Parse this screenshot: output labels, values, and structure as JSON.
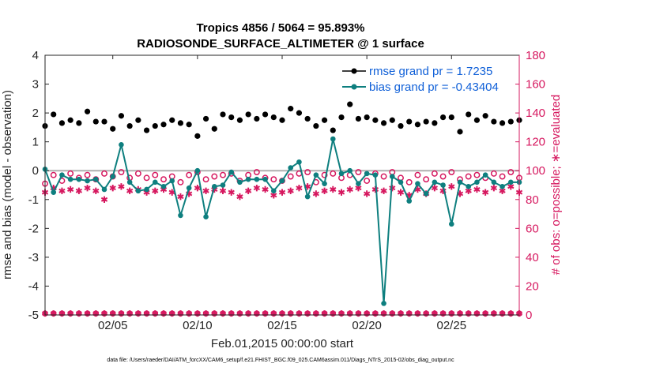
{
  "chart_data": {
    "type": "line",
    "title_line1": "Tropics 4856 / 5064 = 95.893%",
    "title_line2": "RADIOSONDE_SURFACE_ALTIMETER @ 1 surface",
    "xlabel": "Feb.01,2015 00:00:00 start",
    "ylabel_left": "rmse and bias (model - observation)",
    "ylabel_right": "# of obs: o=possible; ∗=evaluated",
    "footnote": "data file: /Users/raeder/DAI/ATM_forcXX/CAM6_setup/f.e21.FHIST_BGC.f09_025.CAM6assim.011/Diags_NTrS_2015-02/obs_diag_output.nc",
    "xlim": [
      1,
      29
    ],
    "ylim_left": [
      -5,
      4
    ],
    "ylim_right": [
      0,
      180
    ],
    "x_ticks": [
      {
        "x": 5,
        "label": "02/05"
      },
      {
        "x": 10,
        "label": "02/10"
      },
      {
        "x": 15,
        "label": "02/15"
      },
      {
        "x": 20,
        "label": "02/20"
      },
      {
        "x": 25,
        "label": "02/25"
      }
    ],
    "y_ticks_left": [
      {
        "v": 4,
        "label": "4"
      },
      {
        "v": 3,
        "label": "3"
      },
      {
        "v": 2,
        "label": "2"
      },
      {
        "v": 1,
        "label": "1"
      },
      {
        "v": 0,
        "label": "0"
      },
      {
        "v": -1,
        "label": "-1"
      },
      {
        "v": -2,
        "label": "-2"
      },
      {
        "v": -3,
        "label": "-3"
      },
      {
        "v": -4,
        "label": "-4"
      },
      {
        "v": -5,
        "label": "-5"
      }
    ],
    "y_ticks_right": [
      {
        "v": 0,
        "label": "0"
      },
      {
        "v": 20,
        "label": "20"
      },
      {
        "v": 40,
        "label": "40"
      },
      {
        "v": 60,
        "label": "60"
      },
      {
        "v": 80,
        "label": "80"
      },
      {
        "v": 100,
        "label": "100"
      },
      {
        "v": 120,
        "label": "120"
      },
      {
        "v": 140,
        "label": "140"
      },
      {
        "v": 160,
        "label": "160"
      },
      {
        "v": 180,
        "label": "180"
      }
    ],
    "legend": [
      {
        "name": "rmse grand pr = 1.7235",
        "color": "#000000"
      },
      {
        "name": "bias grand pr = -0.43404",
        "color": "#0072bd"
      }
    ],
    "colors": {
      "rmse": "#000000",
      "bias": "#0e7f7f",
      "obs": "#d6185f",
      "zero_line": "#b0b0b0",
      "right_axis": "#d6185f"
    },
    "x": [
      1.0,
      1.5,
      2.0,
      2.5,
      3.0,
      3.5,
      4.0,
      4.5,
      5.0,
      5.5,
      6.0,
      6.5,
      7.0,
      7.5,
      8.0,
      8.5,
      9.0,
      9.5,
      10.0,
      10.5,
      11.0,
      11.5,
      12.0,
      12.5,
      13.0,
      13.5,
      14.0,
      14.5,
      15.0,
      15.5,
      16.0,
      16.5,
      17.0,
      17.5,
      18.0,
      18.5,
      19.0,
      19.5,
      20.0,
      20.5,
      21.0,
      21.5,
      22.0,
      22.5,
      23.0,
      23.5,
      24.0,
      24.5,
      25.0,
      25.5,
      26.0,
      26.5,
      27.0,
      27.5,
      28.0,
      28.5,
      29.0
    ],
    "series": [
      {
        "name": "rmse",
        "values": [
          1.55,
          1.95,
          1.65,
          1.75,
          1.65,
          2.05,
          1.7,
          1.7,
          1.45,
          1.9,
          1.55,
          1.75,
          1.4,
          1.55,
          1.6,
          1.75,
          1.65,
          1.6,
          1.2,
          1.8,
          1.45,
          1.95,
          1.85,
          1.75,
          1.95,
          1.8,
          1.95,
          1.85,
          1.75,
          2.15,
          2.0,
          1.8,
          1.55,
          1.75,
          1.4,
          1.85,
          2.3,
          1.8,
          1.85,
          1.75,
          1.65,
          1.75,
          1.55,
          1.7,
          1.6,
          1.7,
          1.65,
          1.85,
          1.85,
          1.35,
          1.95,
          1.75,
          1.9,
          1.7,
          1.65,
          1.7,
          1.75
        ]
      },
      {
        "name": "bias",
        "values": [
          0.05,
          -0.75,
          -0.15,
          -0.3,
          -0.3,
          -0.35,
          -0.3,
          -0.65,
          -0.2,
          0.9,
          -0.4,
          -0.7,
          -0.65,
          -0.4,
          -0.55,
          -0.35,
          -1.55,
          -0.6,
          0.0,
          -1.6,
          -0.55,
          -0.5,
          -0.05,
          -0.4,
          -0.3,
          -0.3,
          -0.3,
          -0.7,
          -0.35,
          0.1,
          0.3,
          -0.9,
          -0.15,
          -0.45,
          1.1,
          -0.1,
          0.0,
          -0.45,
          -0.1,
          -0.15,
          -4.6,
          -0.2,
          -0.4,
          -1.05,
          -0.45,
          -0.8,
          -0.4,
          -0.5,
          -1.85,
          -0.4,
          -0.55,
          -0.4,
          -0.15,
          -0.4,
          -0.55,
          -0.4,
          -0.4
        ]
      },
      {
        "name": "obs_possible",
        "values": [
          91,
          97,
          93,
          98,
          95,
          97,
          94,
          98,
          96,
          99,
          95,
          98,
          95,
          97,
          94,
          96,
          92,
          97,
          99,
          94,
          96,
          97,
          98,
          93,
          97,
          99,
          95,
          94,
          93,
          96,
          98,
          99,
          92,
          97,
          98,
          95,
          97,
          99,
          93,
          98,
          96,
          99,
          95,
          92,
          97,
          94,
          98,
          96,
          99,
          94,
          96,
          97,
          95,
          98,
          96,
          99,
          95
        ]
      },
      {
        "name": "obs_evaluated",
        "values": [
          85,
          88,
          86,
          87,
          86,
          88,
          86,
          80,
          88,
          89,
          86,
          87,
          85,
          86,
          87,
          85,
          82,
          84,
          88,
          86,
          87,
          86,
          85,
          82,
          86,
          88,
          87,
          83,
          85,
          86,
          88,
          89,
          84,
          86,
          87,
          85,
          87,
          88,
          84,
          87,
          86,
          88,
          85,
          83,
          87,
          84,
          88,
          86,
          89,
          84,
          86,
          87,
          85,
          88,
          86,
          89,
          85
        ]
      }
    ],
    "bottom_possible_value": 1,
    "bottom_evaluated_value": 1
  }
}
